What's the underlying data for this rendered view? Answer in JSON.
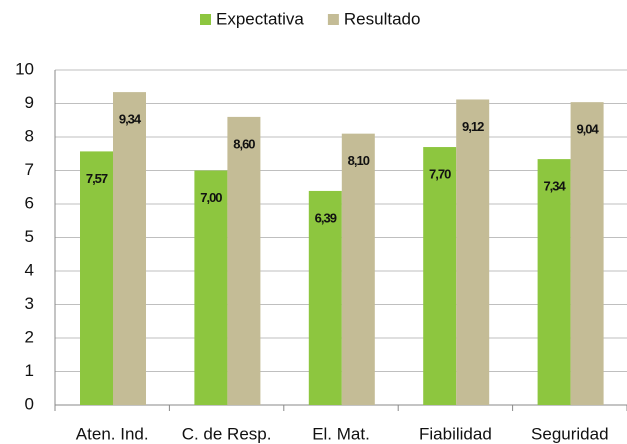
{
  "chart_data": {
    "type": "bar",
    "categories": [
      "Aten. Ind.",
      "C. de Resp.",
      "El. Mat.",
      "Fiabilidad",
      "Seguridad"
    ],
    "series": [
      {
        "name": "Expectativa",
        "color": "#8dc63f",
        "values": [
          7.57,
          7.0,
          6.39,
          7.7,
          7.34
        ],
        "value_labels": [
          "7,57",
          "7,00",
          "6,39",
          "7,70",
          "7,34"
        ]
      },
      {
        "name": "Resultado",
        "color": "#c4bc96",
        "values": [
          9.34,
          8.6,
          8.1,
          9.12,
          9.04
        ],
        "value_labels": [
          "9,34",
          "8,60",
          "8,10",
          "9,12",
          "9,04"
        ]
      }
    ],
    "ylim": [
      0,
      10
    ],
    "yticks": [
      0,
      1,
      2,
      3,
      4,
      5,
      6,
      7,
      8,
      9,
      10
    ],
    "grid": true,
    "legend": "top"
  }
}
